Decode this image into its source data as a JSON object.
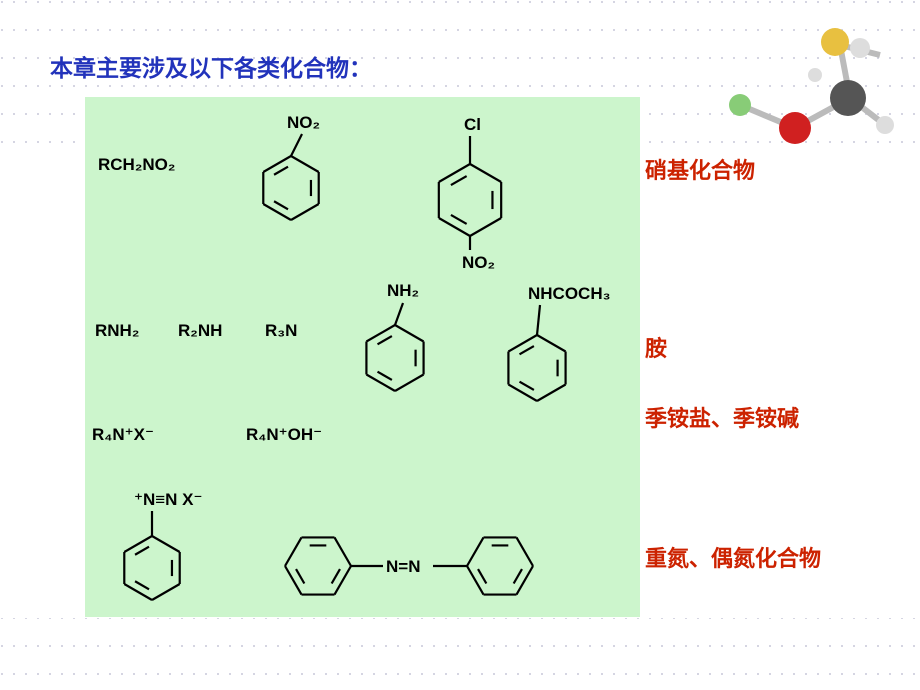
{
  "title": "本章主要涉及以下各类化合物：",
  "structures": {
    "nitroalkane": "RCH₂NO₂",
    "nitrobenzene_group": "NO₂",
    "chloronitrobenzene_cl": "Cl",
    "chloronitrobenzene_no2": "NO₂",
    "primary_amine": "RNH₂",
    "secondary_amine": "R₂NH",
    "tertiary_amine": "R₃N",
    "aniline_group": "NH₂",
    "acetanilide_group": "NHCOCH₃",
    "quaternary_salt": "R₄N⁺X⁻",
    "quaternary_base": "R₄N⁺OH⁻",
    "diazonium_group": "⁺N≡N  X⁻",
    "azo_group": "N=N"
  },
  "classes": [
    "硝基化合物",
    "胺",
    "季铵盐、季铵碱",
    "重氮、偶氮化合物"
  ]
}
